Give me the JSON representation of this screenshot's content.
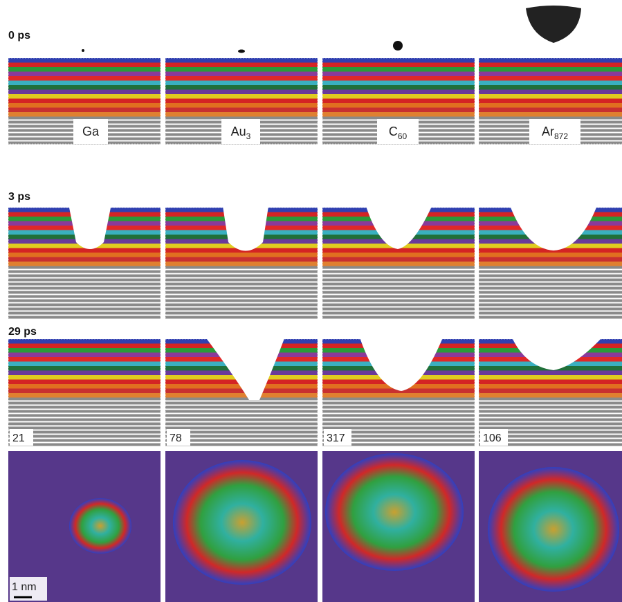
{
  "rows": [
    {
      "label": "0 ps"
    },
    {
      "label": "3 ps"
    },
    {
      "label": "29 ps"
    }
  ],
  "projectiles": [
    {
      "base": "Ga"
    },
    {
      "base": "Au",
      "sub": "3"
    },
    {
      "base": "C",
      "sub": "60"
    },
    {
      "base": "Ar",
      "sub": "872"
    }
  ],
  "crater_counts": [
    21,
    78,
    317,
    106
  ],
  "scale_bar": "1 nm"
}
